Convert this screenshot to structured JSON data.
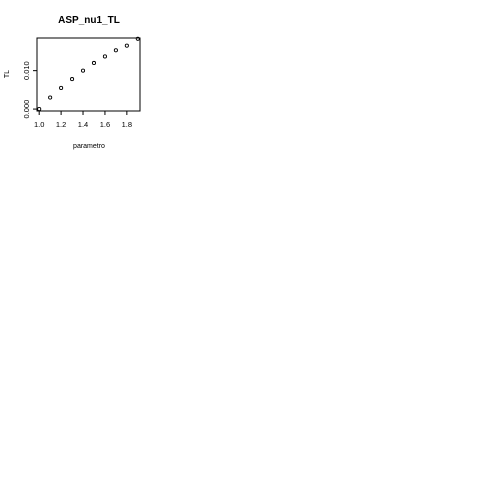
{
  "chart_data": {
    "type": "scatter",
    "title": "ASP_nu1_TL",
    "xlabel": "parametro",
    "ylabel": "TL",
    "xlim": [
      0.98,
      1.92
    ],
    "ylim": [
      -0.0005,
      0.0185
    ],
    "x_ticks": [
      "1.0",
      "1.2",
      "1.4",
      "1.6",
      "1.8"
    ],
    "x_tick_values": [
      1.0,
      1.2,
      1.4,
      1.6,
      1.8
    ],
    "y_ticks": [
      "0.000",
      "0.010"
    ],
    "y_tick_values": [
      0.0,
      0.01
    ],
    "grid": false,
    "marker": "open-circle",
    "x": [
      1.0,
      1.1,
      1.2,
      1.3,
      1.4,
      1.5,
      1.6,
      1.7,
      1.8,
      1.9
    ],
    "y": [
      0.0,
      0.003,
      0.0055,
      0.0078,
      0.01,
      0.012,
      0.0137,
      0.0153,
      0.0165,
      0.0183
    ]
  }
}
